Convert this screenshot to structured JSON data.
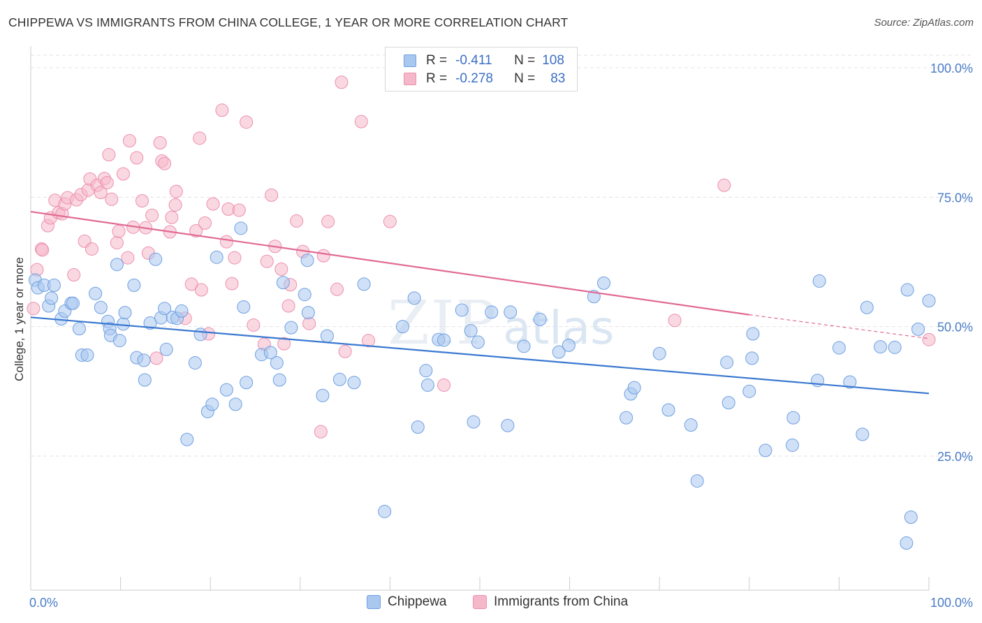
{
  "title": "CHIPPEWA VS IMMIGRANTS FROM CHINA COLLEGE, 1 YEAR OR MORE CORRELATION CHART",
  "source": "Source: ZipAtlas.com",
  "watermark": {
    "zip": "ZIP",
    "atlas": "atlas"
  },
  "colors": {
    "chippewa_fill": "#a9c8f0",
    "chippewa_stroke": "#6f9fe0",
    "chippewa_line": "#3a78d0",
    "china_fill": "#f5b8cb",
    "china_stroke": "#ec8fae",
    "china_line": "#e06a94",
    "tick_label": "#4a7cc7",
    "grid": "#e3e3e3"
  },
  "legend": {
    "rows": [
      {
        "r_label": "R =",
        "r_value": "-0.411",
        "n_label": "N =",
        "n_value": "108"
      },
      {
        "r_label": "R =",
        "r_value": "-0.278",
        "n_label": "N =",
        "n_value": "83"
      }
    ]
  },
  "bottom_legend": {
    "series_1": "Chippewa",
    "series_2": "Immigrants from China"
  },
  "chart_data": {
    "type": "scatter",
    "title": "CHIPPEWA VS IMMIGRANTS FROM CHINA COLLEGE, 1 YEAR OR MORE CORRELATION CHART",
    "xlabel": "",
    "ylabel": "College, 1 year or more",
    "xlim": [
      0,
      100
    ],
    "ylim": [
      0,
      103
    ],
    "x_tick_labels": {
      "left": "0.0%",
      "right": "100.0%"
    },
    "y_ticks": [
      25,
      50,
      75,
      100
    ],
    "y_tick_labels": [
      "25.0%",
      "50.0%",
      "75.0%",
      "100.0%"
    ],
    "grid": true,
    "legend_position": "top-center",
    "series": [
      {
        "name": "Chippewa",
        "R": -0.411,
        "N": 108,
        "trend": {
          "x": [
            0,
            100
          ],
          "y": [
            51.8,
            37.1
          ]
        },
        "points": [
          [
            0.5,
            59
          ],
          [
            0.8,
            57.5
          ],
          [
            1.5,
            58
          ],
          [
            2,
            54
          ],
          [
            2.3,
            55.5
          ],
          [
            2.6,
            58
          ],
          [
            3.4,
            51.5
          ],
          [
            3.8,
            53
          ],
          [
            4.5,
            54.5
          ],
          [
            4.7,
            54.5
          ],
          [
            5.4,
            49.6
          ],
          [
            5.7,
            44.5
          ],
          [
            6.3,
            44.5
          ],
          [
            7.2,
            56.4
          ],
          [
            7.8,
            53.7
          ],
          [
            8.6,
            51
          ],
          [
            8.8,
            49.6
          ],
          [
            8.9,
            48.3
          ],
          [
            9.6,
            62
          ],
          [
            9.9,
            47.3
          ],
          [
            10.3,
            50.5
          ],
          [
            10.5,
            52.7
          ],
          [
            11.5,
            58
          ],
          [
            11.8,
            44
          ],
          [
            12.6,
            43.5
          ],
          [
            12.7,
            39.7
          ],
          [
            13.3,
            50.7
          ],
          [
            13.9,
            63
          ],
          [
            14.5,
            51.7
          ],
          [
            14.9,
            53.5
          ],
          [
            15.1,
            45.6
          ],
          [
            15.8,
            51.8
          ],
          [
            16.3,
            51.6
          ],
          [
            16.8,
            53
          ],
          [
            17.4,
            28.2
          ],
          [
            18.3,
            43
          ],
          [
            18.9,
            48.5
          ],
          [
            19.7,
            33.6
          ],
          [
            20.2,
            35
          ],
          [
            20.7,
            63.4
          ],
          [
            21.8,
            37.8
          ],
          [
            22.8,
            35
          ],
          [
            23.4,
            69
          ],
          [
            23.7,
            53.8
          ],
          [
            24.0,
            39.2
          ],
          [
            25.7,
            44.6
          ],
          [
            26.7,
            45
          ],
          [
            27.4,
            43
          ],
          [
            27.7,
            39.7
          ],
          [
            28.1,
            58.5
          ],
          [
            29.0,
            49.8
          ],
          [
            30.5,
            56.2
          ],
          [
            30.8,
            62.8
          ],
          [
            30.9,
            52.7
          ],
          [
            32.5,
            36.7
          ],
          [
            33.0,
            48.2
          ],
          [
            34.4,
            39.8
          ],
          [
            36.0,
            39.2
          ],
          [
            37.1,
            58.2
          ],
          [
            39.4,
            14.3
          ],
          [
            41.4,
            50
          ],
          [
            42.7,
            55.5
          ],
          [
            43.1,
            30.6
          ],
          [
            44.0,
            41.5
          ],
          [
            44.2,
            38.7
          ],
          [
            45.4,
            47.5
          ],
          [
            46.0,
            47.4
          ],
          [
            48.0,
            53.2
          ],
          [
            49.0,
            49.2
          ],
          [
            49.3,
            31.6
          ],
          [
            49.8,
            47
          ],
          [
            51.3,
            52.8
          ],
          [
            53.1,
            30.9
          ],
          [
            53.4,
            52.8
          ],
          [
            54.9,
            46.2
          ],
          [
            56.7,
            51.4
          ],
          [
            58.8,
            45.1
          ],
          [
            59.9,
            46.4
          ],
          [
            62.7,
            55.8
          ],
          [
            63.8,
            58.4
          ],
          [
            66.3,
            32.4
          ],
          [
            66.8,
            37
          ],
          [
            67.2,
            38.2
          ],
          [
            70.0,
            44.8
          ],
          [
            71.0,
            33.9
          ],
          [
            73.5,
            31
          ],
          [
            74.2,
            20.2
          ],
          [
            77.5,
            43.1
          ],
          [
            77.7,
            35.3
          ],
          [
            80.0,
            37.5
          ],
          [
            80.3,
            43.9
          ],
          [
            80.4,
            48.6
          ],
          [
            81.8,
            26.1
          ],
          [
            84.8,
            27.1
          ],
          [
            84.9,
            32.4
          ],
          [
            87.6,
            39.6
          ],
          [
            87.8,
            58.8
          ],
          [
            90.0,
            45.9
          ],
          [
            91.2,
            39.3
          ],
          [
            92.6,
            29.2
          ],
          [
            93.1,
            53.7
          ],
          [
            94.6,
            46.1
          ],
          [
            96.2,
            46
          ],
          [
            97.6,
            57.1
          ],
          [
            97.5,
            8.2
          ],
          [
            98.0,
            13.2
          ],
          [
            98.8,
            49.5
          ],
          [
            100.0,
            55
          ]
        ]
      },
      {
        "name": "Immigrants from China",
        "R": -0.278,
        "N": 83,
        "trend": {
          "x": [
            0,
            80,
            100
          ],
          "y": [
            72.2,
            52.3,
            47.7
          ]
        },
        "points": [
          [
            0.3,
            53.5
          ],
          [
            0.7,
            61
          ],
          [
            1.2,
            65
          ],
          [
            1.3,
            64.8
          ],
          [
            1.9,
            69.5
          ],
          [
            2.2,
            71
          ],
          [
            2.7,
            74.4
          ],
          [
            3.1,
            72
          ],
          [
            3.5,
            71.8
          ],
          [
            3.8,
            73.7
          ],
          [
            4.1,
            74.9
          ],
          [
            4.8,
            60
          ],
          [
            5.1,
            74.5
          ],
          [
            5.6,
            75.5
          ],
          [
            6.0,
            66.5
          ],
          [
            6.4,
            76.4
          ],
          [
            6.6,
            78.5
          ],
          [
            6.8,
            65
          ],
          [
            7.4,
            77.3
          ],
          [
            7.8,
            75.9
          ],
          [
            8.2,
            78.6
          ],
          [
            8.5,
            77.8
          ],
          [
            8.7,
            83.2
          ],
          [
            9.0,
            74.6
          ],
          [
            9.6,
            66.2
          ],
          [
            9.8,
            68.4
          ],
          [
            10.3,
            79.5
          ],
          [
            10.8,
            63.3
          ],
          [
            11.0,
            85.9
          ],
          [
            11.4,
            69.2
          ],
          [
            11.8,
            82.6
          ],
          [
            12.4,
            74.3
          ],
          [
            12.8,
            69.1
          ],
          [
            13.1,
            64.2
          ],
          [
            13.5,
            71.5
          ],
          [
            14.0,
            43.9
          ],
          [
            14.4,
            85.5
          ],
          [
            14.6,
            82
          ],
          [
            14.9,
            81.5
          ],
          [
            15.5,
            68.3
          ],
          [
            15.7,
            71.1
          ],
          [
            16.1,
            73.5
          ],
          [
            16.2,
            76.1
          ],
          [
            17.2,
            51.6
          ],
          [
            17.9,
            58.2
          ],
          [
            18.4,
            68.5
          ],
          [
            18.8,
            86.4
          ],
          [
            19.0,
            57.1
          ],
          [
            19.4,
            70
          ],
          [
            19.8,
            48.6
          ],
          [
            20.3,
            73.7
          ],
          [
            21.3,
            91.8
          ],
          [
            21.8,
            66.4
          ],
          [
            22.0,
            72.7
          ],
          [
            22.4,
            58.3
          ],
          [
            22.7,
            63.3
          ],
          [
            23.2,
            72.5
          ],
          [
            24.0,
            89.5
          ],
          [
            24.8,
            50.3
          ],
          [
            26.0,
            46.6
          ],
          [
            26.3,
            62.6
          ],
          [
            26.8,
            75.4
          ],
          [
            27.2,
            65.5
          ],
          [
            27.9,
            61.1
          ],
          [
            28.2,
            46.7
          ],
          [
            28.7,
            54
          ],
          [
            28.9,
            58.1
          ],
          [
            29.6,
            70.4
          ],
          [
            30.3,
            64.5
          ],
          [
            31.0,
            50.6
          ],
          [
            32.3,
            29.7
          ],
          [
            32.6,
            63.7
          ],
          [
            33.1,
            70.3
          ],
          [
            34.1,
            57.2
          ],
          [
            34.6,
            97.2
          ],
          [
            35.0,
            45.2
          ],
          [
            36.8,
            89.6
          ],
          [
            37.6,
            47.3
          ],
          [
            40.0,
            70.3
          ],
          [
            46.0,
            38.7
          ],
          [
            71.7,
            51.2
          ],
          [
            77.2,
            77.3
          ],
          [
            100.0,
            47.5
          ]
        ]
      }
    ]
  }
}
